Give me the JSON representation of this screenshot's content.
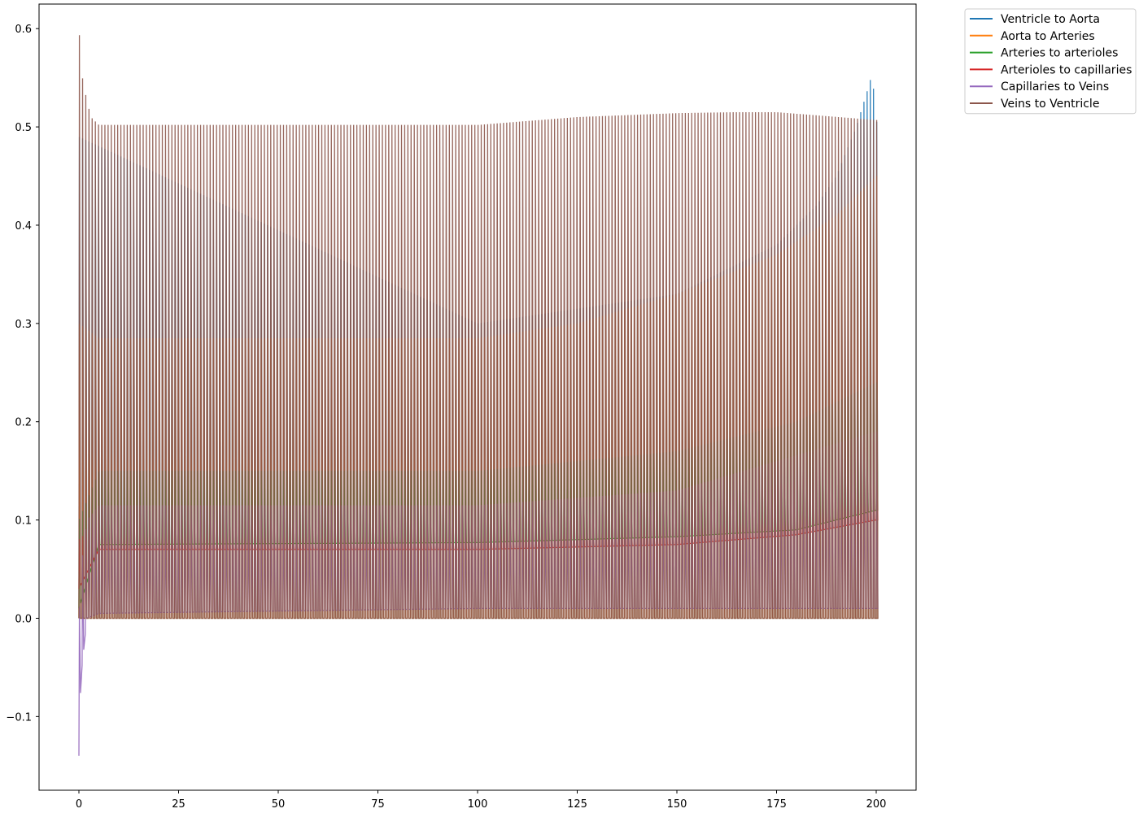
{
  "chart_data": {
    "type": "line",
    "title": "",
    "xlabel": "",
    "ylabel": "",
    "xlim": [
      -10,
      210
    ],
    "ylim": [
      -0.175,
      0.625
    ],
    "x_ticks": [
      0,
      25,
      50,
      75,
      100,
      125,
      150,
      175,
      200
    ],
    "y_ticks": [
      -0.1,
      0.0,
      0.1,
      0.2,
      0.3,
      0.4,
      0.5,
      0.6
    ],
    "x_tick_labels": [
      "0",
      "25",
      "50",
      "75",
      "100",
      "125",
      "150",
      "175",
      "200"
    ],
    "y_tick_labels": [
      "−0.1",
      "0.0",
      "0.1",
      "0.2",
      "0.3",
      "0.4",
      "0.5",
      "0.6"
    ],
    "grid": false,
    "legend_position": "outside top-right",
    "period": 0.8,
    "x_range": [
      0,
      200
    ],
    "series": [
      {
        "name": "Ventricle to Aorta",
        "color": "#1f77b4",
        "envelope": {
          "x": [
            0,
            100,
            150,
            175,
            185,
            190,
            195,
            198,
            199,
            200
          ],
          "min": [
            0,
            0,
            0,
            0,
            0,
            0,
            0,
            0,
            0,
            0
          ],
          "max": [
            0.49,
            0.3,
            0.33,
            0.38,
            0.42,
            0.45,
            0.5,
            0.54,
            0.555,
            0.505
          ]
        }
      },
      {
        "name": "Aorta to Arteries",
        "color": "#ff7f0e",
        "envelope": {
          "x": [
            0,
            5,
            100,
            125,
            150,
            175,
            190,
            200
          ],
          "min": [
            0,
            0,
            0,
            0,
            0,
            0,
            0,
            0
          ],
          "max": [
            0.3,
            0.285,
            0.285,
            0.3,
            0.33,
            0.37,
            0.41,
            0.45
          ]
        }
      },
      {
        "name": "Arteries to arterioles",
        "color": "#2ca02c",
        "envelope": {
          "x": [
            0,
            5,
            100,
            150,
            180,
            200
          ],
          "min": [
            0.01,
            0.075,
            0.077,
            0.083,
            0.09,
            0.11
          ],
          "max": [
            0.1,
            0.15,
            0.15,
            0.17,
            0.2,
            0.24
          ]
        }
      },
      {
        "name": "Arterioles to capillaries",
        "color": "#d62728",
        "envelope": {
          "x": [
            0,
            5,
            100,
            150,
            180,
            200
          ],
          "min": [
            0.03,
            0.07,
            0.07,
            0.075,
            0.085,
            0.1
          ],
          "max": [
            0.08,
            0.1,
            0.1,
            0.11,
            0.14,
            0.18
          ]
        }
      },
      {
        "name": "Capillaries to Veins",
        "color": "#9467bd",
        "envelope": {
          "x": [
            0,
            0.5,
            2,
            5,
            100,
            150,
            200
          ],
          "min": [
            -0.14,
            -0.06,
            0.0,
            0.005,
            0.01,
            0.01,
            0.01
          ],
          "max": [
            0.0,
            0.05,
            0.1,
            0.115,
            0.115,
            0.13,
            0.19
          ]
        }
      },
      {
        "name": "Veins to Ventricle",
        "color": "#8c564b",
        "envelope": {
          "x": [
            0,
            1,
            3,
            5,
            100,
            125,
            150,
            165,
            175,
            200
          ],
          "min": [
            0,
            0,
            0,
            0,
            0,
            0,
            0,
            0,
            0,
            0
          ],
          "max": [
            0.6,
            0.545,
            0.51,
            0.502,
            0.502,
            0.51,
            0.514,
            0.515,
            0.515,
            0.507
          ]
        }
      }
    ]
  }
}
